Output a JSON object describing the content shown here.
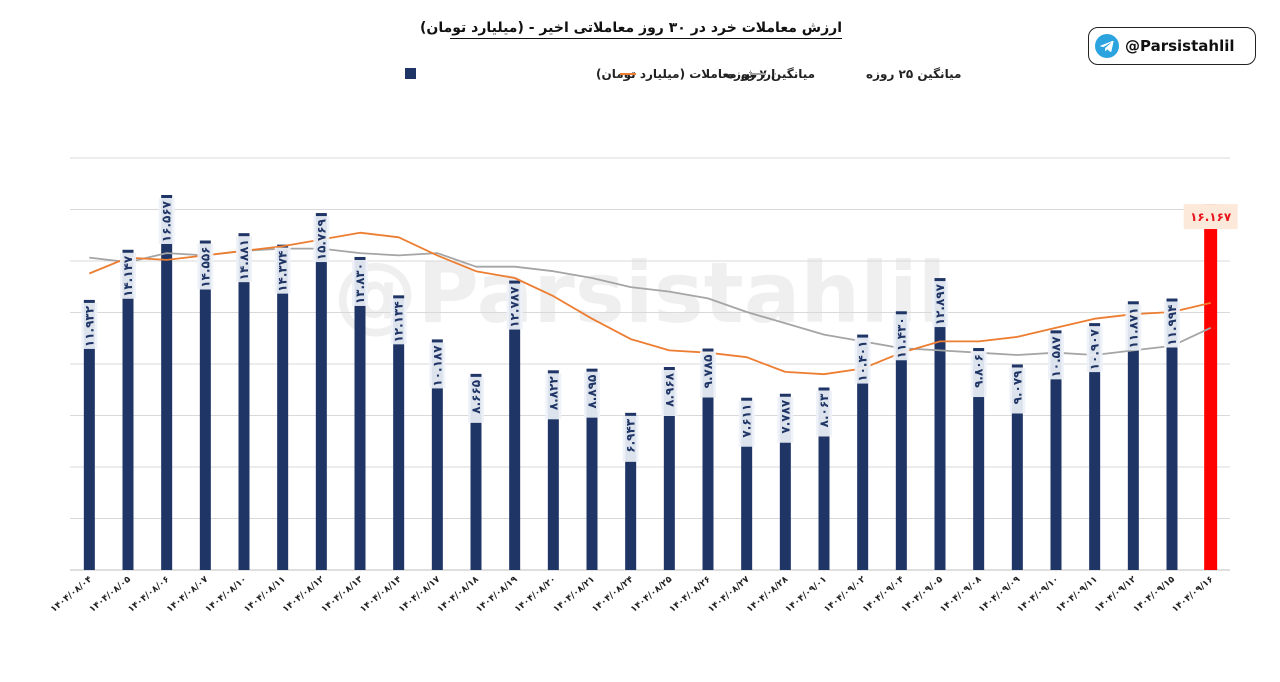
{
  "header": {
    "title": "ارزش معاملات خرد در ۳۰ روز معاملاتی اخیر - (میلیارد تومان)",
    "brand_handle": "@Parsistahlil",
    "watermark": "@Parsistahlil"
  },
  "colors": {
    "bar": "#1f3566",
    "highlight_bar": "#ff0000",
    "ma7": "#ed7d31",
    "ma25": "#a5a5a5",
    "grid": "#d9d9d9",
    "telegram": "#2aa3df"
  },
  "icons": {
    "brand": "telegram-icon"
  },
  "chart_data": {
    "type": "bar",
    "title": "ارزش معاملات خرد در ۳۰ روز معاملاتی اخیر - (میلیارد تومان)",
    "legend_position": "top",
    "grid": true,
    "ylim": [
      0,
      16.5
    ],
    "categories": [
      "۱۴۰۴/۰۸/۰۴",
      "۱۴۰۴/۰۸/۰۵",
      "۱۴۰۴/۰۸/۰۶",
      "۱۴۰۴/۰۸/۰۷",
      "۱۴۰۴/۰۸/۱۰",
      "۱۴۰۴/۰۸/۱۱",
      "۱۴۰۴/۰۸/۱۲",
      "۱۴۰۴/۰۸/۱۳",
      "۱۴۰۴/۰۸/۱۴",
      "۱۴۰۴/۰۸/۱۷",
      "۱۴۰۴/۰۸/۱۸",
      "۱۴۰۴/۰۸/۱۹",
      "۱۴۰۴/۰۸/۲۰",
      "۱۴۰۴/۰۸/۲۱",
      "۱۴۰۴/۰۸/۲۴",
      "۱۴۰۴/۰۸/۲۵",
      "۱۴۰۴/۰۸/۲۶",
      "۱۴۰۴/۰۸/۲۷",
      "۱۴۰۴/۰۸/۲۸",
      "۱۴۰۴/۰۹/۰۱",
      "۱۴۰۴/۰۹/۰۲",
      "۱۴۰۴/۰۹/۰۴",
      "۱۴۰۴/۰۹/۰۵",
      "۱۴۰۴/۰۹/۰۸",
      "۱۴۰۴/۰۹/۰۹",
      "۱۴۰۴/۰۹/۱۰",
      "۱۴۰۴/۰۹/۱۱",
      "۱۴۰۴/۰۹/۱۲",
      "۱۴۰۴/۰۹/۱۵",
      "۱۴۰۴/۰۹/۱۶"
    ],
    "series": [
      {
        "name": "ارزش معاملات (میلیارد تومان)",
        "kind": "bar",
        "values": [
          11.932,
          14.147,
          16.567,
          14.556,
          14.881,
          14.374,
          15.769,
          13.83,
          12.134,
          10.187,
          8.665,
          12.787,
          8.822,
          8.895,
          6.943,
          8.968,
          9.785,
          7.611,
          7.787,
          8.063,
          10.401,
          11.43,
          12.897,
          9.806,
          9.079,
          10.587,
          10.907,
          11.871,
          11.994,
          16.167
        ],
        "labels": [
          "۱۱.۹۳۲",
          "۱۴.۱۴۷",
          "۱۶.۵۶۷",
          "۱۴.۵۵۶",
          "۱۴.۸۸۱",
          "۱۴.۳۷۴",
          "۱۵.۷۶۹",
          "۱۳.۸۳۰",
          "۱۲.۱۳۴",
          "۱۰.۱۸۷",
          "۸.۶۶۵",
          "۱۲.۷۸۷",
          "۸.۸۲۲",
          "۸.۸۹۵",
          "۶.۹۴۳",
          "۸.۹۶۸",
          "۹.۷۸۵",
          "۷.۶۱۱",
          "۷.۷۸۷",
          "۸.۰۶۳",
          "۱۰.۴۰۱",
          "۱۱.۴۳۰",
          "۱۲.۸۹۷",
          "۹.۸۰۶",
          "۹.۰۷۹",
          "۱۰.۵۸۷",
          "۱۰.۹۰۷",
          "۱۱.۸۷۱",
          "۱۱.۹۹۴",
          "۱۶.۱۶۷"
        ]
      },
      {
        "name": "میانگین ۷ روزه",
        "kind": "line",
        "values": [
          13.1,
          13.8,
          13.7,
          13.9,
          14.1,
          14.3,
          14.6,
          14.9,
          14.7,
          13.9,
          13.2,
          12.9,
          12.1,
          11.1,
          10.2,
          9.7,
          9.6,
          9.4,
          8.75,
          8.65,
          8.9,
          9.6,
          10.1,
          10.1,
          10.3,
          10.7,
          11.1,
          11.3,
          11.4,
          11.8
        ]
      },
      {
        "name": "میانگین ۲۵ روزه",
        "kind": "line",
        "values": [
          13.8,
          13.6,
          14.0,
          13.9,
          14.1,
          14.2,
          14.2,
          14.0,
          13.9,
          14.0,
          13.4,
          13.4,
          13.2,
          12.9,
          12.5,
          12.3,
          12.0,
          11.4,
          10.9,
          10.4,
          10.1,
          9.8,
          9.7,
          9.6,
          9.5,
          9.6,
          9.5,
          9.7,
          9.9,
          10.7
        ]
      }
    ]
  }
}
